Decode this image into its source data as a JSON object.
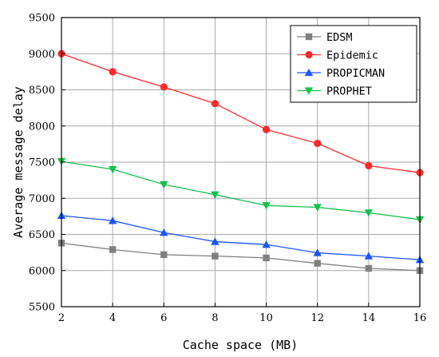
{
  "chart_data": {
    "type": "line",
    "xlabel": "Cache space (MB)",
    "ylabel": "Average message delay",
    "x": [
      2,
      4,
      6,
      8,
      10,
      12,
      14,
      16
    ],
    "xlim": [
      2,
      16
    ],
    "ylim": [
      5500,
      9500
    ],
    "xticks": [
      2,
      4,
      6,
      8,
      10,
      12,
      14,
      16
    ],
    "yticks": [
      5500,
      6000,
      6500,
      7000,
      7500,
      8000,
      8500,
      9000,
      9500
    ],
    "grid": true,
    "legend_position": "top-right",
    "series": [
      {
        "name": "EDSM",
        "marker": "square",
        "color": "#808080",
        "values": [
          6380,
          6290,
          6220,
          6200,
          6175,
          6100,
          6030,
          6000
        ]
      },
      {
        "name": "Epidemic",
        "marker": "circle",
        "color": "#ff2a2a",
        "values": [
          9000,
          8750,
          8540,
          8310,
          7950,
          7760,
          7450,
          7355
        ]
      },
      {
        "name": "PROPICMAN",
        "marker": "triangle-up",
        "color": "#1a55ff",
        "values": [
          6760,
          6690,
          6525,
          6400,
          6360,
          6245,
          6200,
          6150
        ]
      },
      {
        "name": "PROPHET",
        "marker": "triangle-down",
        "color": "#14c04c",
        "values": [
          7510,
          7400,
          7190,
          7050,
          6900,
          6875,
          6800,
          6705
        ]
      }
    ]
  }
}
